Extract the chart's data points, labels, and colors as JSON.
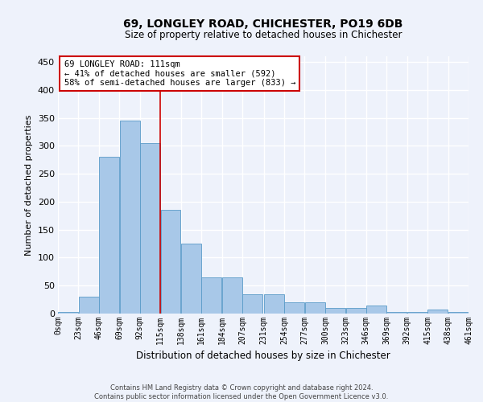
{
  "title": "69, LONGLEY ROAD, CHICHESTER, PO19 6DB",
  "subtitle": "Size of property relative to detached houses in Chichester",
  "xlabel": "Distribution of detached houses by size in Chichester",
  "ylabel": "Number of detached properties",
  "footer_line1": "Contains HM Land Registry data © Crown copyright and database right 2024.",
  "footer_line2": "Contains public sector information licensed under the Open Government Licence v3.0.",
  "bin_edges": [
    0,
    23,
    46,
    69,
    92,
    115,
    138,
    161,
    184,
    207,
    231,
    254,
    277,
    300,
    323,
    346,
    369,
    392,
    415,
    438,
    461
  ],
  "bin_labels": [
    "0sqm",
    "23sqm",
    "46sqm",
    "69sqm",
    "92sqm",
    "115sqm",
    "138sqm",
    "161sqm",
    "184sqm",
    "207sqm",
    "231sqm",
    "254sqm",
    "277sqm",
    "300sqm",
    "323sqm",
    "346sqm",
    "369sqm",
    "392sqm",
    "415sqm",
    "438sqm",
    "461sqm"
  ],
  "bar_heights": [
    3,
    30,
    280,
    345,
    305,
    185,
    125,
    65,
    65,
    35,
    35,
    20,
    20,
    10,
    10,
    15,
    3,
    3,
    7,
    3,
    0
  ],
  "bar_color": "#a8c8e8",
  "bar_edge_color": "#5a9bc8",
  "reference_line_x": 115,
  "reference_line_color": "#cc0000",
  "annotation_text": "69 LONGLEY ROAD: 111sqm\n← 41% of detached houses are smaller (592)\n58% of semi-detached houses are larger (833) →",
  "annotation_box_color": "#ffffff",
  "annotation_box_edge": "#cc0000",
  "bg_color": "#eef2fb",
  "plot_bg_color": "#eef2fb",
  "grid_color": "#ffffff",
  "ylim": [
    0,
    460
  ],
  "yticks": [
    0,
    50,
    100,
    150,
    200,
    250,
    300,
    350,
    400,
    450
  ]
}
